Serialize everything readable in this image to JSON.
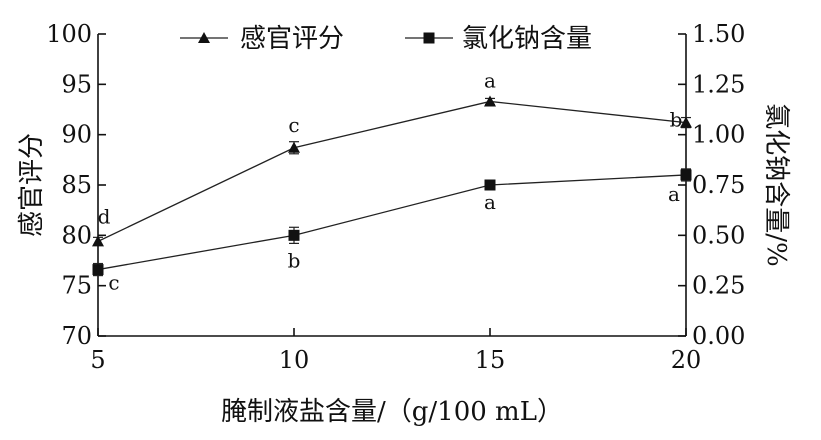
{
  "chart_data": {
    "type": "line",
    "title": "",
    "xlabel": "腌制液盐含量/（g/100 mL）",
    "ylabel_left": "感官评分",
    "ylabel_right": "氯化钠含量/%",
    "x": [
      5,
      10,
      15,
      20
    ],
    "x_ticks": [
      "5",
      "10",
      "15",
      "20"
    ],
    "ylim_left": [
      70,
      100
    ],
    "yticks_left": [
      "70",
      "75",
      "80",
      "85",
      "90",
      "95",
      "100"
    ],
    "ylim_right": [
      0,
      1.5
    ],
    "yticks_right": [
      "0.00",
      "0.25",
      "0.50",
      "0.75",
      "1.00",
      "1.25",
      "1.50"
    ],
    "grid": false,
    "legend_position": "top",
    "series": [
      {
        "name": "感官评分",
        "axis": "left",
        "marker": "triangle",
        "values": [
          79.4,
          88.7,
          93.3,
          91.2
        ],
        "errors": [
          0.4,
          0.6,
          0.3,
          0.5
        ],
        "labels": [
          "d",
          "c",
          "a",
          "b"
        ]
      },
      {
        "name": "氯化钠含量",
        "axis": "right",
        "marker": "square",
        "values": [
          0.33,
          0.5,
          0.75,
          0.8
        ],
        "errors": [
          0.03,
          0.04,
          0.02,
          0.03
        ],
        "labels": [
          "c",
          "b",
          "a",
          "a"
        ]
      }
    ]
  }
}
